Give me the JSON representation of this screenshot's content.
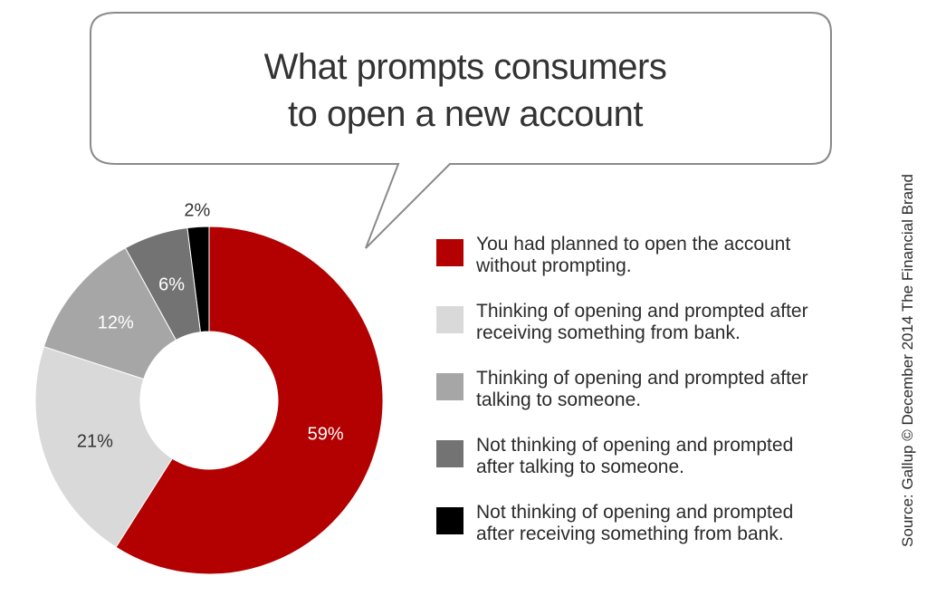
{
  "chart_data": {
    "type": "pie",
    "title_lines": [
      "What prompts consumers",
      "to open a new account"
    ],
    "slices": [
      {
        "label": "You had planned to open the account without prompting.",
        "value": 59,
        "value_label": "59%",
        "color": "#b30000",
        "label_color": "#ffffff"
      },
      {
        "label": "Thinking of opening and prompted after receiving something from bank.",
        "value": 21,
        "value_label": "21%",
        "color": "#d9d9d9",
        "label_color": "#333333"
      },
      {
        "label": "Thinking of opening and prompted after talking to someone.",
        "value": 12,
        "value_label": "12%",
        "color": "#a6a6a6",
        "label_color": "#ffffff"
      },
      {
        "label": "Not thinking of opening and prompted after talking to someone.",
        "value": 6,
        "value_label": "6%",
        "color": "#737373",
        "label_color": "#ffffff"
      },
      {
        "label": "Not thinking of opening and prompted after receiving something from bank.",
        "value": 2,
        "value_label": "2%",
        "color": "#000000",
        "label_color": "#333333"
      }
    ],
    "legend_lines": [
      [
        "You had planned to open the account",
        "without prompting."
      ],
      [
        "Thinking of opening and prompted after",
        "receiving something from bank."
      ],
      [
        "Thinking of opening and prompted after",
        "talking to someone."
      ],
      [
        "Not thinking of opening and prompted",
        "after talking to someone."
      ],
      [
        "Not thinking of opening and prompted",
        "after receiving something from bank."
      ]
    ],
    "legend_position": "right"
  },
  "source": "Source: Gallup © December 2014 The Financial Brand"
}
